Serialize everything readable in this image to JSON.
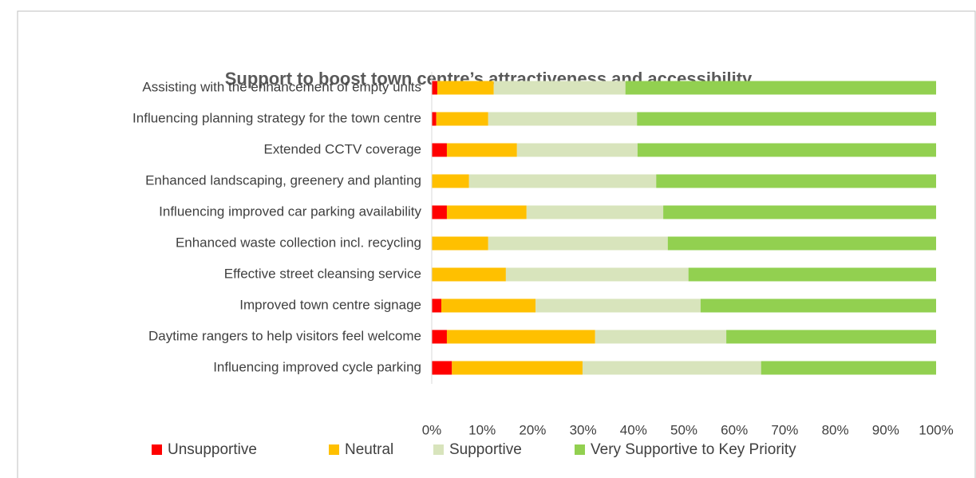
{
  "chart_data": {
    "type": "stacked_bar_horizontal",
    "title": "Support to boost town centre’s attractiveness and accessibility",
    "categories": [
      "Assisting with the enhancement of empty units",
      "Influencing planning strategy for the town centre",
      "Extended CCTV coverage",
      "Enhanced landscaping, greenery and planting",
      "Influencing improved car parking availability",
      "Enhanced waste collection incl. recycling",
      "Effective street cleansing service",
      "Improved town centre signage",
      "Daytime rangers to help visitors feel welcome",
      "Influencing improved cycle parking"
    ],
    "series": [
      {
        "name": "Unsupportive",
        "color": "#ff0000",
        "values": [
          1.1,
          0.9,
          3.0,
          0,
          3.0,
          0,
          0,
          1.9,
          3.0,
          4.0
        ]
      },
      {
        "name": "Neutral",
        "color": "#ffc000",
        "values": [
          11.2,
          10.3,
          13.9,
          7.4,
          15.8,
          11.2,
          14.7,
          18.7,
          29.4,
          25.9
        ]
      },
      {
        "name": "Supportive",
        "color": "#d8e4bc",
        "values": [
          26.1,
          29.5,
          23.9,
          37.1,
          27.1,
          35.6,
          36.2,
          32.7,
          26.0,
          35.4
        ]
      },
      {
        "name": "Very Supportive to Key Priority",
        "color": "#92d050",
        "values": [
          61.6,
          59.3,
          59.2,
          55.5,
          54.1,
          53.2,
          49.1,
          46.7,
          41.6,
          34.7
        ]
      }
    ],
    "xlim": [
      0,
      100
    ],
    "xticks": [
      {
        "value": 0,
        "label": "0%"
      },
      {
        "value": 10,
        "label": "10%"
      },
      {
        "value": 20,
        "label": "20%"
      },
      {
        "value": 30,
        "label": "30%"
      },
      {
        "value": 40,
        "label": "40%"
      },
      {
        "value": 50,
        "label": "50%"
      },
      {
        "value": 60,
        "label": "60%"
      },
      {
        "value": 70,
        "label": "70%"
      },
      {
        "value": 80,
        "label": "80%"
      },
      {
        "value": 90,
        "label": "90%"
      },
      {
        "value": 100,
        "label": "100%"
      }
    ],
    "legend": "bottom"
  }
}
